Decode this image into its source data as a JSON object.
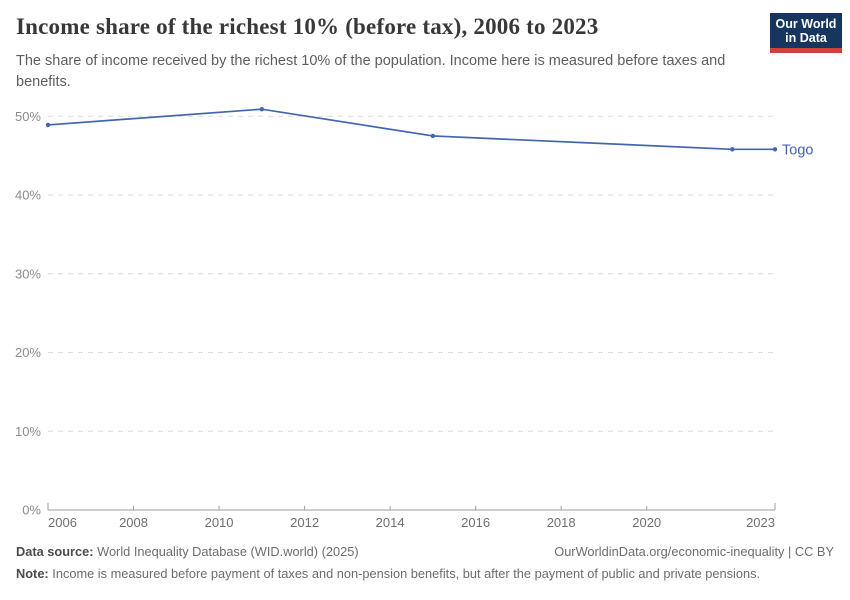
{
  "theme": {
    "logo-bg": "#163660",
    "logo-bar": "#d0403a",
    "accent": "#4166ad"
  },
  "header": {
    "title": "Income share of the richest 10% (before tax), 2006 to 2023",
    "subtitle": "The share of income received by the richest 10% of the population. Income here is measured before taxes and benefits.",
    "logo": {
      "line1": "Our World",
      "line2": "in Data"
    }
  },
  "chart_data": {
    "type": "line",
    "title": "Income share of the richest 10% (before tax), 2006 to 2023",
    "x": [
      2006,
      2011,
      2015,
      2022,
      2023
    ],
    "series": [
      {
        "name": "Togo",
        "color": "#4166ad",
        "values": [
          48.9,
          50.9,
          47.5,
          45.8,
          45.8
        ]
      }
    ],
    "xlabel": "",
    "ylabel": "",
    "x_ticks": [
      2006,
      2008,
      2010,
      2012,
      2014,
      2016,
      2018,
      2020,
      2023
    ],
    "y_ticks": [
      0,
      10,
      20,
      30,
      40,
      50
    ],
    "y_suffix": "%",
    "xlim": [
      2006,
      2023
    ],
    "ylim": [
      0,
      52.7
    ],
    "grid": "horizontal-dashed",
    "legend": "end-of-line-label"
  },
  "footer": {
    "source_label": "Data source:",
    "source_text": "World Inequality Database (WID.world) (2025)",
    "citation": "OurWorldinData.org/economic-inequality | CC BY",
    "note_label": "Note:",
    "note_text": "Income is measured before payment of taxes and non-pension benefits, but after the payment of public and private pensions."
  }
}
